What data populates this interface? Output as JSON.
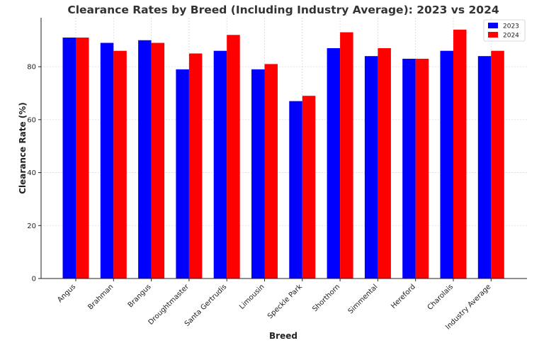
{
  "chart_data": {
    "type": "bar",
    "title": "Clearance Rates by Breed (Including Industry Average): 2023 vs 2024",
    "xlabel": "Breed",
    "ylabel": "Clearance Rate (%)",
    "categories": [
      "Angus",
      "Brahman",
      "Brangus",
      "Droughtmaster",
      "Santa Gertrudis",
      "Limousin",
      "Speckle Park",
      "Shorthorn",
      "Simmental",
      "Hereford",
      "Charolais",
      "Industry Average"
    ],
    "series": [
      {
        "name": "2023",
        "color": "#0000ff",
        "values": [
          91,
          89,
          90,
          79,
          86,
          79,
          67,
          87,
          84,
          83,
          86,
          84
        ]
      },
      {
        "name": "2024",
        "color": "#ff0000",
        "values": [
          91,
          86,
          89,
          85,
          92,
          81,
          69,
          93,
          87,
          83,
          94,
          86
        ]
      }
    ],
    "ylim": [
      0,
      98.5
    ],
    "yticks": [
      0,
      20,
      40,
      60,
      80
    ],
    "grid": true,
    "legend_position": "top-right"
  }
}
